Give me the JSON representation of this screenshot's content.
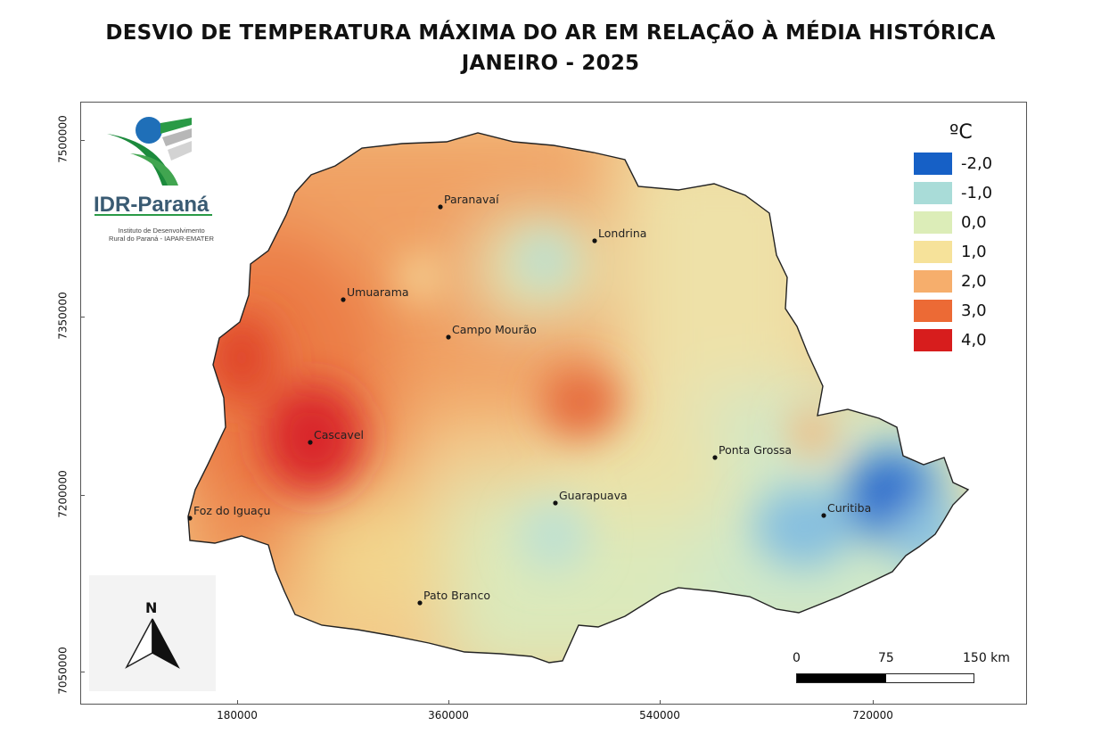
{
  "title": {
    "line1": "DESVIO DE TEMPERATURA MÁXIMA DO AR EM RELAÇÃO À MÉDIA HISTÓRICA",
    "line2": "JANEIRO - 2025"
  },
  "logo": {
    "name": "IDR-Paraná",
    "subtitle_line1": "Instituto de Desenvolvimento",
    "subtitle_line2": "Rural do Paraná - IAPAR-EMATER"
  },
  "axes": {
    "x_ticks": [
      "180000",
      "360000",
      "540000",
      "720000"
    ],
    "y_ticks": [
      "7500000",
      "7350000",
      "7200000",
      "7050000"
    ]
  },
  "legend": {
    "unit": "ºC",
    "items": [
      {
        "label": "-2,0",
        "color": "#1660c6"
      },
      {
        "label": "-1,0",
        "color": "#a9dcd8"
      },
      {
        "label": "0,0",
        "color": "#dcedb8"
      },
      {
        "label": "1,0",
        "color": "#f6e29a"
      },
      {
        "label": "2,0",
        "color": "#f6ae6c"
      },
      {
        "label": "3,0",
        "color": "#ec6a35"
      },
      {
        "label": "4,0",
        "color": "#d71d1d"
      }
    ]
  },
  "cities": [
    {
      "name": "Paranavaí"
    },
    {
      "name": "Londrina"
    },
    {
      "name": "Umuarama"
    },
    {
      "name": "Campo Mourão"
    },
    {
      "name": "Cascavel"
    },
    {
      "name": "Ponta Grossa"
    },
    {
      "name": "Guarapuava"
    },
    {
      "name": "Curitiba"
    },
    {
      "name": "Foz do Iguaçu"
    },
    {
      "name": "Pato Branco"
    }
  ],
  "north_arrow": {
    "label": "N"
  },
  "scale_bar": {
    "labels": [
      "0",
      "75",
      "150 km"
    ]
  }
}
